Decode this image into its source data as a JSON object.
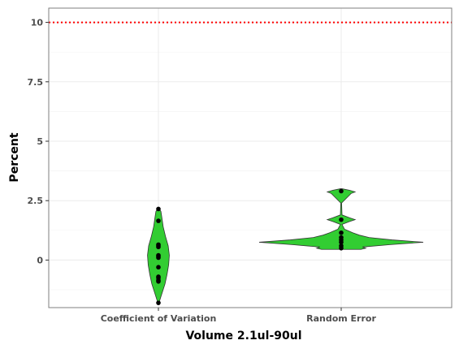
{
  "chart_data": {
    "type": "violin",
    "xlabel": "Volume 2.1ul-90ul",
    "ylabel": "Percent",
    "categories": [
      "Coefficient of Variation",
      "Random Error"
    ],
    "ylim": [
      -2.0,
      10.6
    ],
    "y_ticks": [
      0,
      2.5,
      5,
      7.5,
      10
    ],
    "y_tick_labels": [
      "0",
      "2.5",
      "5",
      "7.5",
      "10"
    ],
    "grid": true,
    "reference_line": {
      "y": 10,
      "color": "#ff0000",
      "style": "dotted"
    },
    "fill_color": "#32cd32",
    "series": [
      {
        "category": "Coefficient of Variation",
        "points": [
          2.15,
          1.65,
          0.65,
          0.6,
          0.55,
          0.2,
          0.15,
          0.1,
          -0.3,
          -0.7,
          -0.75,
          -0.85,
          -0.9,
          -1.8
        ],
        "density": [
          {
            "y": -1.8,
            "w": 0.05
          },
          {
            "y": -1.6,
            "w": 0.18
          },
          {
            "y": -1.3,
            "w": 0.38
          },
          {
            "y": -1.0,
            "w": 0.58
          },
          {
            "y": -0.6,
            "w": 0.76
          },
          {
            "y": -0.2,
            "w": 0.9
          },
          {
            "y": 0.2,
            "w": 0.96
          },
          {
            "y": 0.6,
            "w": 0.86
          },
          {
            "y": 1.0,
            "w": 0.62
          },
          {
            "y": 1.4,
            "w": 0.42
          },
          {
            "y": 1.8,
            "w": 0.3
          },
          {
            "y": 2.05,
            "w": 0.22
          },
          {
            "y": 2.15,
            "w": 0.08
          }
        ]
      },
      {
        "category": "Random Error",
        "points": [
          2.9,
          1.7,
          1.15,
          0.95,
          0.85,
          0.75,
          0.6,
          0.5
        ],
        "density": [
          {
            "y": 0.45,
            "w": 0.24
          },
          {
            "y": 0.5,
            "w": 0.3
          },
          {
            "y": 0.55,
            "w": 0.26
          },
          {
            "y": 0.65,
            "w": 0.6
          },
          {
            "y": 0.75,
            "w": 1.0
          },
          {
            "y": 0.85,
            "w": 0.62
          },
          {
            "y": 0.95,
            "w": 0.34
          },
          {
            "y": 1.05,
            "w": 0.22
          },
          {
            "y": 1.15,
            "w": 0.14
          },
          {
            "y": 1.3,
            "w": 0.04
          },
          {
            "y": 1.5,
            "w": 0.01
          },
          {
            "y": 1.62,
            "w": 0.1
          },
          {
            "y": 1.7,
            "w": 0.17
          },
          {
            "y": 1.78,
            "w": 0.1
          },
          {
            "y": 1.9,
            "w": 0.01
          },
          {
            "y": 2.4,
            "w": 0.005
          },
          {
            "y": 2.8,
            "w": 0.12
          },
          {
            "y": 2.87,
            "w": 0.17
          },
          {
            "y": 2.94,
            "w": 0.1
          },
          {
            "y": 3.0,
            "w": 0.01
          }
        ]
      }
    ]
  }
}
